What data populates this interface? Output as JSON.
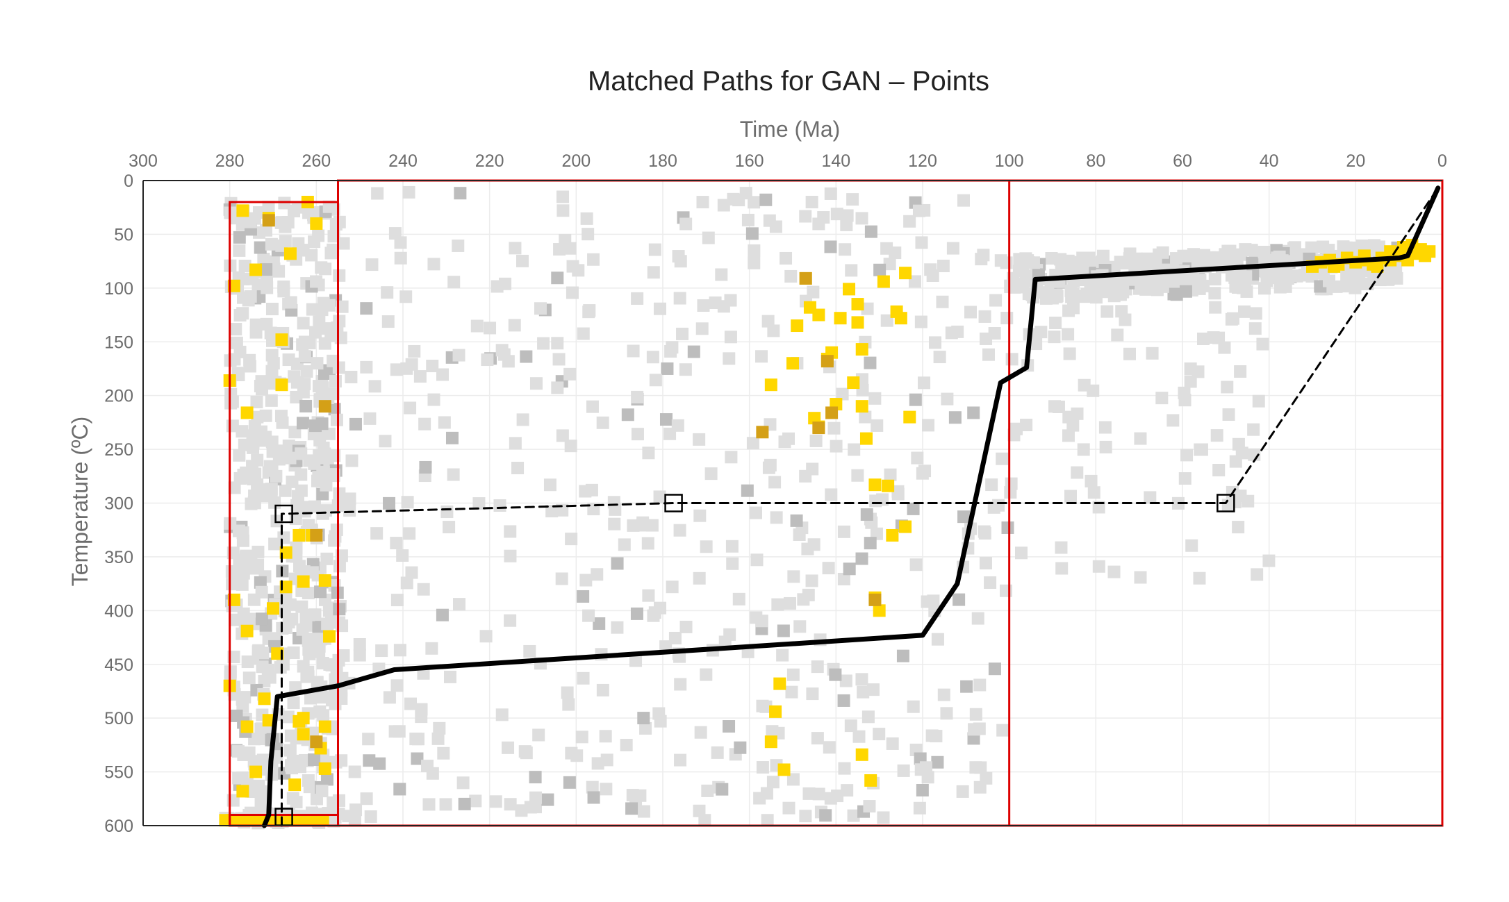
{
  "chart_data": {
    "type": "scatter",
    "title": "Matched Paths for GAN – Points",
    "xlabel": "Time (Ma)",
    "ylabel": "Temperature (ºC)",
    "xlim": [
      300,
      0
    ],
    "ylim": [
      600,
      0
    ],
    "x_axis_position": "top",
    "y_reversed": true,
    "grid": true,
    "x_ticks": [
      "300",
      "280",
      "260",
      "240",
      "220",
      "200",
      "180",
      "160",
      "140",
      "120",
      "100",
      "80",
      "60",
      "40",
      "20",
      "0"
    ],
    "y_ticks": [
      "0",
      "50",
      "100",
      "150",
      "200",
      "250",
      "300",
      "350",
      "400",
      "450",
      "500",
      "550",
      "600"
    ],
    "colors": {
      "unmatched_light": "#dedede",
      "unmatched_dark": "#bdbdbd",
      "matched": "#ffd700",
      "matched_dark": "#d4a017",
      "constraint_box": "#dd0000",
      "best_path": "#000000",
      "input_path": "#000000"
    },
    "constraint_boxes": [
      {
        "t_range": [
          280,
          255
        ],
        "T_range": [
          20,
          600
        ]
      },
      {
        "t_range": [
          255,
          0
        ],
        "T_range": [
          0,
          600
        ]
      },
      {
        "t_range": [
          100,
          0
        ],
        "T_range": [
          0,
          600
        ]
      },
      {
        "t_range": [
          280,
          255
        ],
        "T_range": [
          590,
          600
        ]
      }
    ],
    "series": [
      {
        "style": "solid",
        "x": [
          272,
          271,
          270.5,
          269,
          255,
          242,
          120,
          112,
          102,
          96,
          94,
          10,
          8,
          1
        ],
        "y": [
          600,
          590,
          540,
          480,
          470,
          455,
          423,
          375,
          188,
          174,
          92,
          72,
          70,
          7
        ]
      },
      {
        "style": "dashed",
        "x": [
          268,
          268,
          177.5,
          50,
          1
        ],
        "y": [
          600,
          310,
          300,
          300,
          7
        ]
      }
    ],
    "markers": [
      {
        "x": 267.5,
        "y": 310
      },
      {
        "x": 177.5,
        "y": 300
      },
      {
        "x": 50,
        "y": 300
      },
      {
        "x": 267.5,
        "y": 592
      }
    ],
    "matched_points": [
      [
        277,
        28
      ],
      [
        262,
        20
      ],
      [
        260,
        40
      ],
      [
        271,
        35
      ],
      [
        266,
        68
      ],
      [
        274,
        83
      ],
      [
        279,
        98
      ],
      [
        268,
        148
      ],
      [
        280,
        186
      ],
      [
        268,
        190
      ],
      [
        276,
        216
      ],
      [
        267,
        346
      ],
      [
        263,
        373
      ],
      [
        258,
        372
      ],
      [
        264,
        330
      ],
      [
        261,
        330
      ],
      [
        270,
        398
      ],
      [
        279,
        390
      ],
      [
        267,
        378
      ],
      [
        276,
        419
      ],
      [
        269,
        440
      ],
      [
        280,
        470
      ],
      [
        264,
        503
      ],
      [
        263,
        500
      ],
      [
        272,
        482
      ],
      [
        276,
        508
      ],
      [
        271,
        502
      ],
      [
        274,
        550
      ],
      [
        265,
        562
      ],
      [
        277,
        568
      ],
      [
        258,
        547
      ],
      [
        259,
        528
      ],
      [
        263,
        515
      ],
      [
        258,
        508
      ],
      [
        257,
        424
      ],
      [
        153,
        468
      ],
      [
        154,
        494
      ],
      [
        155,
        522
      ],
      [
        152,
        548
      ],
      [
        155,
        190
      ],
      [
        150,
        170
      ],
      [
        149,
        135
      ],
      [
        147,
        91
      ],
      [
        146,
        118
      ],
      [
        144,
        125
      ],
      [
        142,
        166
      ],
      [
        141,
        160
      ],
      [
        140,
        208
      ],
      [
        139,
        128
      ],
      [
        137,
        101
      ],
      [
        135,
        115
      ],
      [
        136,
        188
      ],
      [
        135,
        132
      ],
      [
        134,
        157
      ],
      [
        133,
        240
      ],
      [
        134,
        210
      ],
      [
        131,
        283
      ],
      [
        129,
        94
      ],
      [
        128,
        284
      ],
      [
        127,
        330
      ],
      [
        126,
        122
      ],
      [
        125,
        128
      ],
      [
        124,
        86
      ],
      [
        124,
        322
      ],
      [
        123,
        220
      ],
      [
        130,
        400
      ],
      [
        131,
        388
      ],
      [
        134,
        534
      ],
      [
        132,
        558
      ],
      [
        145,
        221
      ],
      [
        144,
        229
      ],
      [
        30,
        80
      ],
      [
        28,
        76
      ],
      [
        26,
        74
      ],
      [
        24,
        78
      ],
      [
        22,
        72
      ],
      [
        20,
        76
      ],
      [
        18,
        74
      ],
      [
        16,
        78
      ],
      [
        14,
        72
      ],
      [
        12,
        74
      ],
      [
        10,
        70
      ],
      [
        8,
        74
      ],
      [
        6,
        68
      ],
      [
        4,
        70
      ],
      [
        15,
        80
      ],
      [
        25,
        80
      ],
      [
        9,
        62
      ],
      [
        7,
        60
      ],
      [
        5,
        64
      ],
      [
        3,
        66
      ],
      [
        12,
        66
      ],
      [
        18,
        70
      ]
    ],
    "matched_dark_points": [
      [
        258,
        210
      ],
      [
        260,
        330
      ],
      [
        271,
        37
      ],
      [
        260,
        522
      ],
      [
        142,
        168
      ],
      [
        141,
        216
      ],
      [
        147,
        91
      ],
      [
        157,
        234
      ],
      [
        131,
        390
      ],
      [
        144,
        230
      ]
    ]
  }
}
